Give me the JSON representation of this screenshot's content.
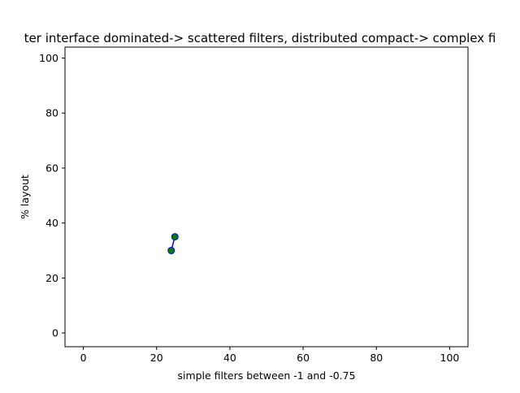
{
  "chart_data": {
    "type": "line",
    "title": "ter interface dominated-> scattered filters, distributed compact-> complex fi",
    "xlabel": "simple filters between -1 and -0.75",
    "ylabel": "% layout",
    "xlim": [
      -5,
      105
    ],
    "ylim": [
      -5,
      104
    ],
    "xticks": [
      0,
      20,
      40,
      60,
      80,
      100
    ],
    "yticks": [
      0,
      20,
      40,
      60,
      80,
      100
    ],
    "grid": false,
    "series": [
      {
        "x": [
          24,
          25
        ],
        "y": [
          30,
          35
        ],
        "line_color": "#0000ff",
        "marker_face_color": "#008000",
        "marker_edge_color": "#0000ff"
      }
    ]
  }
}
